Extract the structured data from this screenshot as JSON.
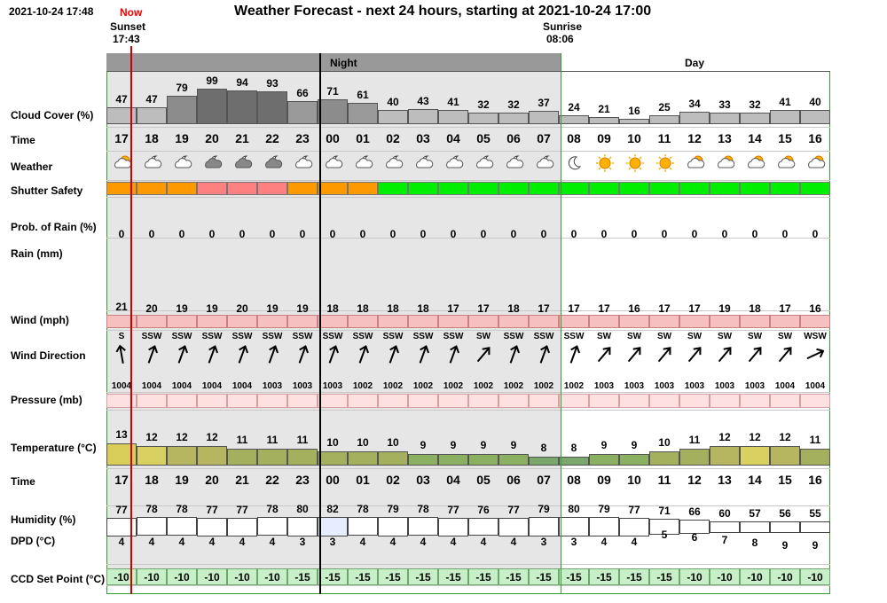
{
  "header": {
    "timestamp": "2021-10-24 17:48",
    "now_label": "Now",
    "title": "Weather Forecast - next 24 hours, starting at 2021-10-24 17:00",
    "sunset_label": "Sunset",
    "sunset_time": "17:43",
    "sunrise_label": "Sunrise",
    "sunrise_time": "08:06",
    "night_label": "Night",
    "day_label": "Day"
  },
  "labels": {
    "cloud": "Cloud Cover (%)",
    "time": "Time",
    "weather": "Weather",
    "shutter": "Shutter Safety",
    "rainprob": "Prob. of Rain (%)",
    "rain": "Rain (mm)",
    "wind": "Wind (mph)",
    "winddir": "Wind Direction",
    "pressure": "Pressure (mb)",
    "temp": "Temperature (°C)",
    "time2": "Time",
    "humidity": "Humidity (%)",
    "dpd": "DPD (°C)",
    "ccd": "CCD Set Point (°C)"
  },
  "colors": {
    "night_band": "#999999",
    "night_bg": "#e6e6e6",
    "now_line": "#cc0000",
    "shutter_orange": "#ff9900",
    "shutter_pink": "#ff8080",
    "shutter_green": "#00ee00",
    "wind_fill": "#f7c0c0",
    "pressure_fill": "#fde0e0",
    "ccd_fill": "#c8f0c8"
  },
  "hours": [
    "17",
    "18",
    "19",
    "20",
    "21",
    "22",
    "23",
    "00",
    "01",
    "02",
    "03",
    "04",
    "05",
    "06",
    "07",
    "08",
    "09",
    "10",
    "11",
    "12",
    "13",
    "14",
    "15",
    "16"
  ],
  "cloud": [
    47,
    47,
    79,
    99,
    94,
    93,
    66,
    71,
    61,
    40,
    43,
    41,
    32,
    32,
    37,
    24,
    21,
    16,
    25,
    34,
    33,
    32,
    41,
    40
  ],
  "weather_icons": [
    "partly-cloudy-day-icon",
    "partly-cloudy-night-icon",
    "partly-cloudy-night-icon",
    "cloudy-night-icon",
    "cloudy-night-icon",
    "cloudy-night-icon",
    "partly-cloudy-night-icon",
    "partly-cloudy-night-icon",
    "partly-cloudy-night-icon",
    "partly-cloudy-night-icon",
    "partly-cloudy-night-icon",
    "partly-cloudy-night-icon",
    "partly-cloudy-night-icon",
    "partly-cloudy-night-icon",
    "partly-cloudy-night-icon",
    "moon-icon",
    "sun-icon",
    "sun-icon",
    "sun-icon",
    "partly-cloudy-day-icon",
    "partly-cloudy-day-icon",
    "partly-cloudy-day-icon",
    "partly-cloudy-day-icon",
    "partly-cloudy-day-icon"
  ],
  "shutter": [
    "orange",
    "orange",
    "orange",
    "pink",
    "pink",
    "pink",
    "orange",
    "orange",
    "orange",
    "green",
    "green",
    "green",
    "green",
    "green",
    "green",
    "green",
    "green",
    "green",
    "green",
    "green",
    "green",
    "green",
    "green",
    "green"
  ],
  "rain_prob": [
    0,
    0,
    0,
    0,
    0,
    0,
    0,
    0,
    0,
    0,
    0,
    0,
    0,
    0,
    0,
    0,
    0,
    0,
    0,
    0,
    0,
    0,
    0,
    0
  ],
  "wind": [
    21,
    20,
    19,
    19,
    20,
    19,
    19,
    18,
    18,
    18,
    18,
    17,
    17,
    18,
    17,
    17,
    17,
    16,
    17,
    17,
    19,
    18,
    17,
    16
  ],
  "wind_dir": [
    "S",
    "SSW",
    "SSW",
    "SSW",
    "SSW",
    "SSW",
    "SSW",
    "SSW",
    "SSW",
    "SSW",
    "SSW",
    "SSW",
    "SW",
    "SSW",
    "SSW",
    "SSW",
    "SW",
    "SW",
    "SW",
    "SW",
    "SW",
    "SW",
    "SW",
    "WSW"
  ],
  "pressure": [
    1004,
    1004,
    1004,
    1004,
    1004,
    1003,
    1003,
    1003,
    1002,
    1002,
    1002,
    1002,
    1002,
    1002,
    1002,
    1002,
    1003,
    1003,
    1003,
    1003,
    1003,
    1003,
    1004,
    1004
  ],
  "temp": [
    13,
    12,
    12,
    12,
    11,
    11,
    11,
    10,
    10,
    10,
    9,
    9,
    9,
    9,
    8,
    8,
    9,
    9,
    10,
    11,
    12,
    12,
    12,
    11
  ],
  "humidity": [
    77,
    78,
    78,
    77,
    77,
    78,
    80,
    82,
    78,
    79,
    78,
    77,
    76,
    77,
    79,
    80,
    79,
    77,
    71,
    66,
    60,
    57,
    56,
    55
  ],
  "dpd": [
    4,
    4,
    4,
    4,
    4,
    4,
    3,
    3,
    4,
    4,
    4,
    4,
    4,
    4,
    3,
    3,
    4,
    4,
    5,
    6,
    7,
    8,
    9,
    9
  ],
  "ccd": [
    -10,
    -10,
    -10,
    -10,
    -10,
    -10,
    -15,
    -15,
    -15,
    -15,
    -15,
    -15,
    -15,
    -15,
    -15,
    -15,
    -15,
    -15,
    -15,
    -10,
    -10,
    -10,
    -10,
    -10
  ]
}
